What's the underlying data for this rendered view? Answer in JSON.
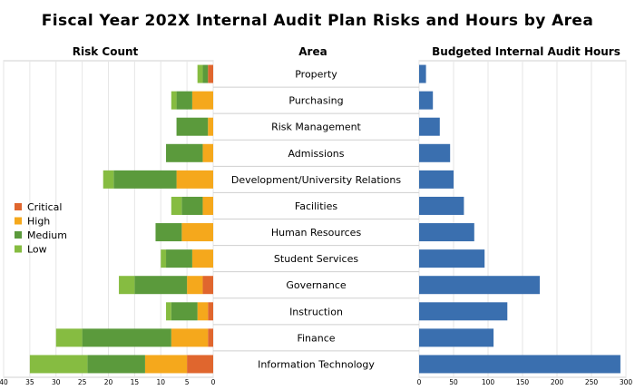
{
  "chart_data": {
    "type": "bar",
    "title": "Fiscal Year 202X Internal Audit Plan Risks and Hours by Area",
    "left_panel": {
      "title": "Risk Count",
      "xlim": [
        0,
        40
      ],
      "ticks": [
        "40",
        "35",
        "30",
        "25",
        "20",
        "15",
        "10",
        "5",
        "0"
      ],
      "series": [
        {
          "name": "Critical",
          "color": "#E0662E",
          "values": [
            1,
            0,
            0,
            0,
            0,
            0,
            0,
            0,
            2,
            1,
            1,
            5
          ]
        },
        {
          "name": "High",
          "color": "#F5A81C",
          "values": [
            0,
            4,
            1,
            2,
            7,
            2,
            6,
            4,
            3,
            2,
            7,
            8
          ]
        },
        {
          "name": "Medium",
          "color": "#5B9A3C",
          "values": [
            1,
            3,
            6,
            7,
            12,
            4,
            5,
            5,
            10,
            5,
            17,
            11
          ]
        },
        {
          "name": "Low",
          "color": "#86BC41",
          "values": [
            1,
            1,
            0,
            0,
            2,
            2,
            0,
            1,
            3,
            1,
            5,
            11
          ]
        }
      ]
    },
    "middle_panel": {
      "title": "Area",
      "categories": [
        "Property",
        "Purchasing",
        "Risk Management",
        "Admissions",
        "Development/University Relations",
        "Facilities",
        "Human Resources",
        "Student Services",
        "Governance",
        "Instruction",
        "Finance",
        "Information Technology"
      ]
    },
    "right_panel": {
      "title": "Budgeted Internal Audit Hours",
      "xlim": [
        0,
        300
      ],
      "ticks": [
        "0",
        "50",
        "100",
        "150",
        "200",
        "250",
        "300"
      ],
      "color": "#3A6FAF",
      "values": [
        10,
        20,
        30,
        45,
        50,
        65,
        80,
        95,
        175,
        128,
        108,
        292
      ]
    },
    "legend": {
      "placement": "left",
      "entries": [
        "Critical",
        "High",
        "Medium",
        "Low"
      ]
    }
  }
}
